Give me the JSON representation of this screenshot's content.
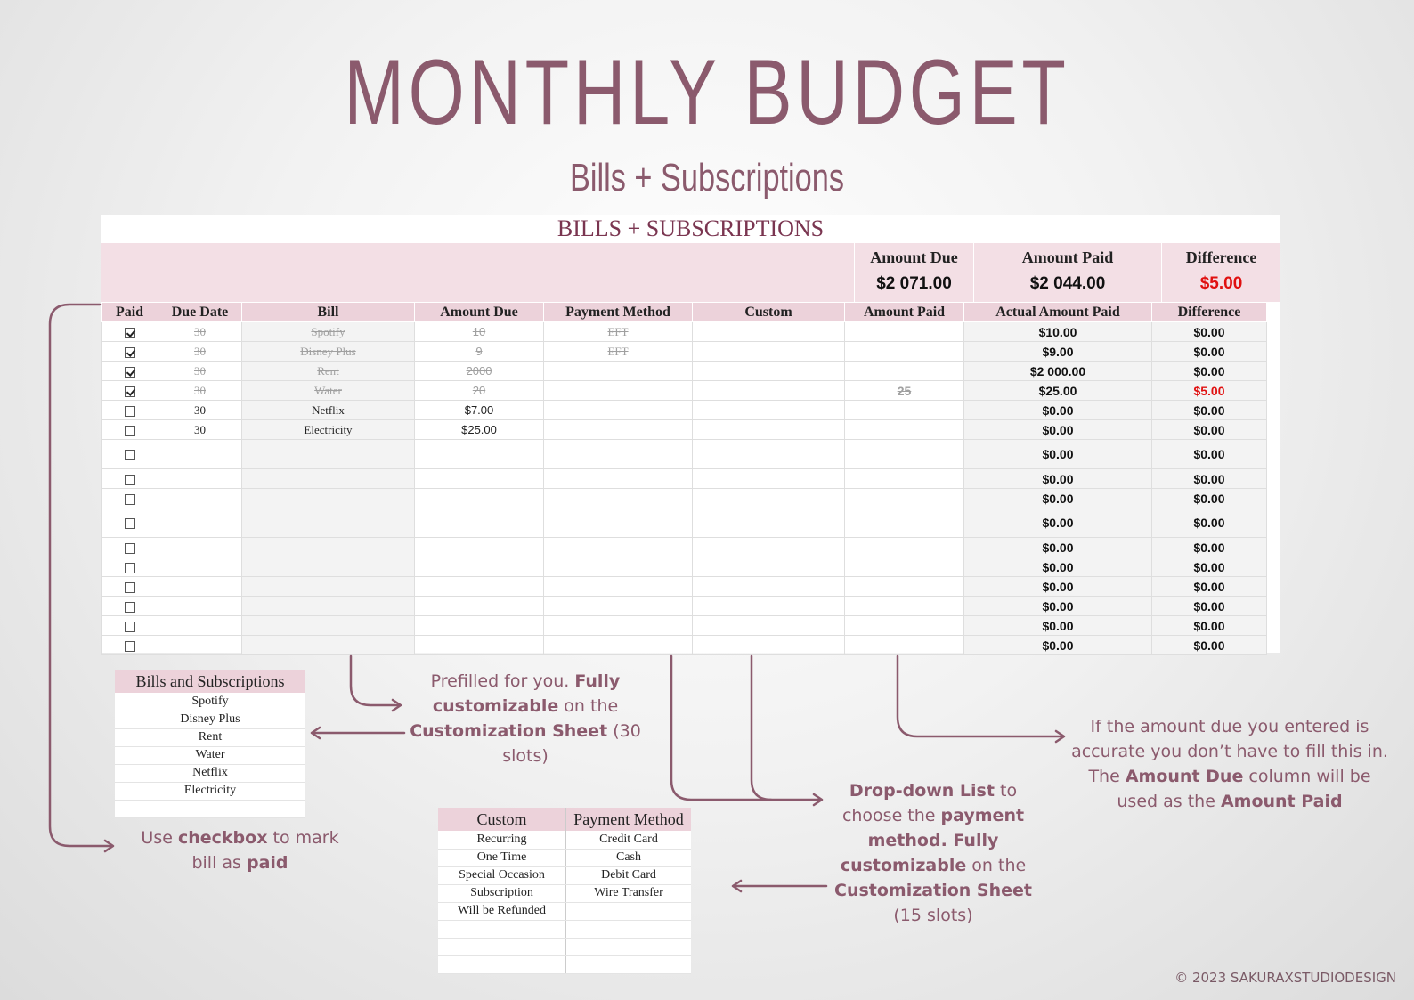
{
  "header": {
    "title": "MONTHLY BUDGET",
    "subtitle": "Bills + Subscriptions"
  },
  "sheet": {
    "title": "BILLS + SUBSCRIPTIONS",
    "summary": [
      {
        "label": "Amount Due",
        "value": "$2 071.00"
      },
      {
        "label": "Amount Paid",
        "value": "$2 044.00"
      },
      {
        "label": "Difference",
        "value": "$5.00"
      }
    ],
    "columns": [
      "Paid",
      "Due Date",
      "Bill",
      "Amount Due",
      "Payment Method",
      "Custom",
      "Amount Paid",
      "Actual Amount Paid",
      "Difference"
    ],
    "rows": [
      {
        "paid": true,
        "due": "30",
        "bill": "Spotify",
        "amount": "10",
        "method": "EFT",
        "custom": "",
        "paid_amt": "",
        "actual": "$10.00",
        "diff": "$0.00"
      },
      {
        "paid": true,
        "due": "30",
        "bill": "Disney Plus",
        "amount": "9",
        "method": "EFT",
        "custom": "",
        "paid_amt": "",
        "actual": "$9.00",
        "diff": "$0.00"
      },
      {
        "paid": true,
        "due": "30",
        "bill": "Rent",
        "amount": "2000",
        "method": "",
        "custom": "",
        "paid_amt": "",
        "actual": "$2 000.00",
        "diff": "$0.00"
      },
      {
        "paid": true,
        "due": "30",
        "bill": "Water",
        "amount": "20",
        "method": "",
        "custom": "",
        "paid_amt": "25",
        "actual": "$25.00",
        "diff": "$5.00"
      },
      {
        "paid": false,
        "due": "30",
        "bill": "Netflix",
        "amount": "$7.00",
        "method": "",
        "custom": "",
        "paid_amt": "",
        "actual": "$0.00",
        "diff": "$0.00"
      },
      {
        "paid": false,
        "due": "30",
        "bill": "Electricity",
        "amount": "$25.00",
        "method": "",
        "custom": "",
        "paid_amt": "",
        "actual": "$0.00",
        "diff": "$0.00"
      },
      {
        "paid": false,
        "due": "",
        "bill": "",
        "amount": "",
        "method": "",
        "custom": "",
        "paid_amt": "",
        "actual": "$0.00",
        "diff": "$0.00"
      },
      {
        "paid": false,
        "due": "",
        "bill": "",
        "amount": "",
        "method": "",
        "custom": "",
        "paid_amt": "",
        "actual": "$0.00",
        "diff": "$0.00"
      },
      {
        "paid": false,
        "due": "",
        "bill": "",
        "amount": "",
        "method": "",
        "custom": "",
        "paid_amt": "",
        "actual": "$0.00",
        "diff": "$0.00"
      },
      {
        "paid": false,
        "due": "",
        "bill": "",
        "amount": "",
        "method": "",
        "custom": "",
        "paid_amt": "",
        "actual": "$0.00",
        "diff": "$0.00"
      },
      {
        "paid": false,
        "due": "",
        "bill": "",
        "amount": "",
        "method": "",
        "custom": "",
        "paid_amt": "",
        "actual": "$0.00",
        "diff": "$0.00"
      },
      {
        "paid": false,
        "due": "",
        "bill": "",
        "amount": "",
        "method": "",
        "custom": "",
        "paid_amt": "",
        "actual": "$0.00",
        "diff": "$0.00"
      },
      {
        "paid": false,
        "due": "",
        "bill": "",
        "amount": "",
        "method": "",
        "custom": "",
        "paid_amt": "",
        "actual": "$0.00",
        "diff": "$0.00"
      },
      {
        "paid": false,
        "due": "",
        "bill": "",
        "amount": "",
        "method": "",
        "custom": "",
        "paid_amt": "",
        "actual": "$0.00",
        "diff": "$0.00"
      },
      {
        "paid": false,
        "due": "",
        "bill": "",
        "amount": "",
        "method": "",
        "custom": "",
        "paid_amt": "",
        "actual": "$0.00",
        "diff": "$0.00"
      },
      {
        "paid": false,
        "due": "",
        "bill": "",
        "amount": "",
        "method": "",
        "custom": "",
        "paid_amt": "",
        "actual": "$0.00",
        "diff": "$0.00"
      }
    ]
  },
  "bills_list": {
    "header": "Bills and Subscriptions",
    "items": [
      "Spotify",
      "Disney Plus",
      "Rent",
      "Water",
      "Netflix",
      "Electricity",
      ""
    ]
  },
  "custom_list": {
    "header": "Custom",
    "items": [
      "Recurring",
      "One Time",
      "Special Occasion",
      "Subscription",
      "Will be Refunded",
      "",
      "",
      ""
    ]
  },
  "payment_list": {
    "header": "Payment Method",
    "items": [
      "Credit Card",
      "Cash",
      "Debit Card",
      "Wire Transfer",
      "",
      "",
      "",
      ""
    ]
  },
  "notes": {
    "prefilled": {
      "a": "Prefilled for you. ",
      "b": "Fully customizable",
      "c": " on the ",
      "d": "Customization Sheet",
      "e": " (30 slots)"
    },
    "checkbox": {
      "a": "Use ",
      "b": "checkbox",
      "c": " to mark bill as ",
      "d": "paid"
    },
    "dropdown": {
      "a": "Drop-down List",
      "b": " to choose the ",
      "c": "payment method. Fully customizable",
      "d": " on the ",
      "e": "Customization Sheet",
      "f": " (15 slots)"
    },
    "amount": {
      "a": "If the amount due you entered is accurate you don’t have to fill this in. The ",
      "b": "Amount Due",
      "c": " column will be used as the ",
      "d": "Amount Paid"
    }
  },
  "copyright": "© 2023 SAKURAXSTUDIODESIGN",
  "colors": {
    "accent": "#8b5a6d",
    "header_pink": "#ecd2da",
    "summary_pink": "#f3dfe5",
    "alert_red": "#e01010"
  }
}
